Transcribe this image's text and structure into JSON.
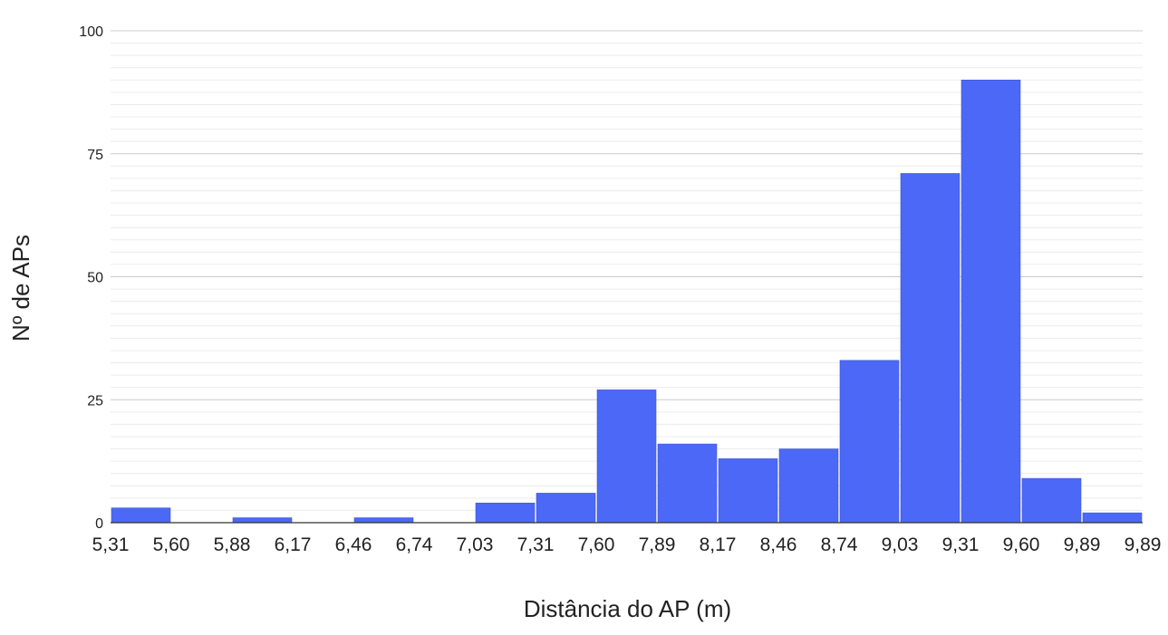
{
  "chart_data": {
    "type": "bar",
    "title": "",
    "xlabel": "Distância do AP (m)",
    "ylabel": "Nº de APs",
    "x_tick_labels": [
      "5,31",
      "5,60",
      "5,88",
      "6,17",
      "6,46",
      "6,74",
      "7,03",
      "7,31",
      "7,60",
      "7,89",
      "8,17",
      "8,46",
      "8,74",
      "9,03",
      "9,31",
      "9,60",
      "9,89",
      "9,89"
    ],
    "y_ticks": [
      0,
      25,
      50,
      75,
      100
    ],
    "ylim": [
      0,
      100
    ],
    "minor_gridline_step": 2.5,
    "grid": true,
    "legend": "none",
    "values": [
      3,
      0,
      1,
      0,
      1,
      0,
      4,
      6,
      27,
      16,
      13,
      15,
      33,
      71,
      90,
      9,
      2
    ],
    "bar_color": "#4c68f6"
  }
}
